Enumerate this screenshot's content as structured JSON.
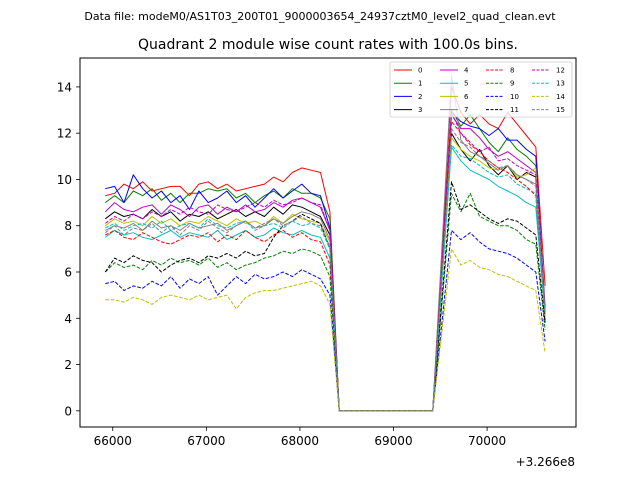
{
  "chart_data": {
    "type": "line",
    "suptitle": "Data file: modeM0/AS1T03_200T01_9000003654_24937cztM0_level2_quad_clean.evt",
    "title": "Quadrant 2 module wise count rates with 100.0s bins.",
    "xlabel": "",
    "ylabel": "",
    "x_offset_label": "+3.266e8",
    "xlim": [
      65650,
      70950
    ],
    "ylim": [
      -0.7,
      15.25
    ],
    "x_ticks": [
      66000,
      67000,
      68000,
      69000,
      70000
    ],
    "x_tick_labels": [
      "66000",
      "67000",
      "68000",
      "69000",
      "70000"
    ],
    "y_ticks": [
      0,
      2,
      4,
      6,
      8,
      10,
      12,
      14
    ],
    "y_tick_labels": [
      "0",
      "2",
      "4",
      "6",
      "8",
      "10",
      "12",
      "14"
    ],
    "grid": false,
    "legend_placement": "top-right",
    "x_segments": {
      "seg1": {
        "start": 65920,
        "step": 100,
        "count": 25
      },
      "gap": {
        "start": 68420,
        "end": 69420
      },
      "seg2": {
        "start": 69620,
        "step": 100,
        "count": 11
      }
    },
    "series": [
      {
        "name": "0",
        "color": "#ff0000",
        "dash": "solid",
        "seg1": [
          9.3,
          9.4,
          9.8,
          9.6,
          9.9,
          9.5,
          9.6,
          9.7,
          9.7,
          9.3,
          9.8,
          9.9,
          9.6,
          9.8,
          9.5,
          9.6,
          9.7,
          9.8,
          10.1,
          9.9,
          10.3,
          10.5,
          10.4,
          10.3,
          8.6
        ],
        "seg2": [
          14.0,
          12.9,
          12.4,
          12.8,
          12.4,
          12.2,
          12.9,
          12.4,
          11.9,
          11.4,
          5.4
        ]
      },
      {
        "name": "1",
        "color": "#008000",
        "dash": "solid",
        "seg1": [
          9.0,
          9.3,
          9.0,
          9.5,
          9.3,
          9.6,
          9.1,
          9.4,
          9.0,
          9.4,
          9.4,
          9.6,
          9.5,
          9.6,
          9.2,
          9.4,
          9.0,
          9.3,
          9.5,
          9.2,
          9.6,
          9.4,
          9.4,
          9.2,
          8.3
        ],
        "seg2": [
          13.0,
          12.3,
          12.8,
          12.2,
          11.6,
          11.2,
          11.8,
          11.3,
          11.0,
          10.6,
          4.5
        ]
      },
      {
        "name": "2",
        "color": "#0000ff",
        "dash": "solid",
        "seg1": [
          9.6,
          9.7,
          9.0,
          10.2,
          9.6,
          9.2,
          9.5,
          9.0,
          9.3,
          8.7,
          9.5,
          9.0,
          9.2,
          9.5,
          9.0,
          9.3,
          8.8,
          9.2,
          9.6,
          9.2,
          9.5,
          9.8,
          9.4,
          9.3,
          7.9
        ],
        "seg2": [
          12.9,
          12.5,
          12.3,
          12.2,
          11.9,
          12.2,
          11.7,
          11.7,
          11.3,
          11.0,
          4.3
        ]
      },
      {
        "name": "3",
        "color": "#000000",
        "dash": "solid",
        "seg1": [
          8.3,
          8.6,
          8.4,
          8.5,
          8.3,
          8.7,
          8.4,
          8.6,
          8.2,
          8.5,
          8.4,
          8.6,
          8.3,
          8.5,
          8.7,
          8.4,
          8.6,
          8.4,
          8.8,
          8.5,
          8.9,
          8.8,
          8.6,
          8.4,
          7.6
        ],
        "seg2": [
          12.0,
          11.3,
          10.8,
          11.3,
          10.6,
          10.2,
          10.6,
          10.0,
          10.3,
          10.1,
          3.9
        ]
      },
      {
        "name": "4",
        "color": "#bf00bf",
        "dash": "solid",
        "seg1": [
          8.6,
          9.0,
          8.7,
          8.6,
          8.8,
          8.9,
          8.5,
          8.9,
          8.7,
          8.4,
          8.8,
          8.9,
          8.5,
          8.8,
          8.6,
          8.9,
          8.6,
          8.7,
          9.0,
          8.8,
          9.1,
          9.2,
          9.0,
          8.8,
          7.8
        ],
        "seg2": [
          12.8,
          12.2,
          12.2,
          11.8,
          11.3,
          11.0,
          11.2,
          10.9,
          10.6,
          10.3,
          4.4
        ]
      },
      {
        "name": "5",
        "color": "#00bfbf",
        "dash": "solid",
        "seg1": [
          7.5,
          7.8,
          7.6,
          7.7,
          7.5,
          7.4,
          7.6,
          7.8,
          7.5,
          7.7,
          7.6,
          7.5,
          7.8,
          7.4,
          7.6,
          7.8,
          7.5,
          7.6,
          7.9,
          7.7,
          7.6,
          7.8,
          7.6,
          7.5,
          6.6
        ],
        "seg2": [
          11.4,
          10.8,
          10.4,
          10.2,
          10.0,
          9.7,
          9.5,
          9.3,
          9.0,
          8.8,
          4.1
        ]
      },
      {
        "name": "6",
        "color": "#bfbf00",
        "dash": "solid",
        "seg1": [
          8.0,
          8.3,
          8.1,
          8.2,
          8.0,
          8.4,
          8.1,
          8.3,
          8.0,
          8.2,
          8.1,
          8.4,
          8.2,
          8.0,
          8.3,
          8.1,
          8.2,
          8.0,
          8.4,
          8.1,
          8.5,
          8.3,
          8.2,
          8.1,
          7.3
        ],
        "seg2": [
          11.8,
          11.3,
          11.0,
          10.8,
          10.5,
          10.4,
          10.6,
          10.1,
          10.2,
          10.5,
          4.0
        ]
      },
      {
        "name": "7",
        "color": "#808080",
        "dash": "solid",
        "seg1": [
          7.8,
          8.0,
          7.9,
          8.1,
          7.8,
          8.2,
          7.9,
          8.0,
          7.8,
          8.1,
          7.9,
          8.0,
          8.1,
          7.8,
          8.0,
          8.2,
          7.9,
          8.0,
          8.3,
          8.1,
          8.4,
          8.6,
          8.5,
          8.3,
          7.4
        ],
        "seg2": [
          14.5,
          11.7,
          11.2,
          11.0,
          10.7,
          10.4,
          10.6,
          10.2,
          10.0,
          9.8,
          4.2
        ]
      },
      {
        "name": "8",
        "color": "#ff0000",
        "dash": "dashed",
        "seg1": [
          7.6,
          7.8,
          7.5,
          7.4,
          7.7,
          7.5,
          7.3,
          7.2,
          7.4,
          7.6,
          7.5,
          7.7,
          7.3,
          7.6,
          7.4,
          7.8,
          7.5,
          7.3,
          7.6,
          7.8,
          7.5,
          7.7,
          7.4,
          7.3,
          6.3
        ],
        "seg2": [
          12.5,
          12.0,
          11.5,
          11.2,
          10.8,
          10.5,
          10.3,
          10.0,
          9.7,
          9.3,
          4.3
        ]
      },
      {
        "name": "9",
        "color": "#008000",
        "dash": "dashed",
        "seg1": [
          6.0,
          6.4,
          6.2,
          6.3,
          6.1,
          6.5,
          6.3,
          6.6,
          6.4,
          6.5,
          6.3,
          6.6,
          6.2,
          6.4,
          6.1,
          6.3,
          6.4,
          6.6,
          6.7,
          6.9,
          6.8,
          7.0,
          6.9,
          6.7,
          5.8
        ],
        "seg2": [
          9.4,
          8.6,
          9.4,
          8.4,
          8.2,
          8.0,
          8.0,
          7.8,
          7.4,
          7.2,
          3.5
        ]
      },
      {
        "name": "10",
        "color": "#0000ff",
        "dash": "dashed",
        "seg1": [
          5.5,
          5.6,
          5.2,
          5.4,
          5.3,
          5.6,
          5.4,
          5.8,
          5.3,
          5.7,
          5.5,
          5.8,
          5.0,
          5.4,
          5.8,
          5.5,
          5.9,
          5.7,
          5.8,
          6.0,
          5.8,
          6.1,
          5.9,
          5.7,
          5.0
        ],
        "seg2": [
          7.8,
          7.4,
          7.7,
          7.3,
          7.0,
          6.9,
          6.8,
          6.6,
          6.3,
          6.0,
          3.0
        ]
      },
      {
        "name": "11",
        "color": "#000000",
        "dash": "dashed",
        "seg1": [
          6.0,
          6.6,
          6.4,
          6.7,
          6.5,
          6.4,
          6.0,
          6.3,
          6.5,
          6.6,
          6.4,
          6.7,
          6.6,
          6.8,
          6.6,
          6.9,
          6.7,
          6.8,
          7.5,
          8.0,
          8.2,
          8.5,
          8.3,
          8.1,
          7.0
        ],
        "seg2": [
          9.9,
          8.7,
          8.9,
          8.6,
          8.3,
          8.1,
          8.3,
          8.2,
          7.9,
          7.6,
          3.8
        ]
      },
      {
        "name": "12",
        "color": "#bf00bf",
        "dash": "dashed",
        "seg1": [
          8.1,
          8.4,
          8.2,
          8.5,
          8.3,
          8.6,
          8.4,
          8.7,
          8.5,
          8.8,
          8.6,
          8.5,
          8.9,
          8.7,
          8.6,
          8.8,
          9.0,
          8.8,
          9.1,
          8.9,
          9.0,
          9.2,
          9.0,
          8.9,
          7.8
        ],
        "seg2": [
          12.9,
          12.0,
          11.6,
          11.2,
          11.4,
          10.8,
          10.9,
          10.6,
          10.4,
          10.2,
          4.3
        ]
      },
      {
        "name": "13",
        "color": "#00bfbf",
        "dash": "dashed",
        "seg1": [
          7.9,
          8.1,
          7.8,
          8.0,
          8.1,
          7.9,
          8.2,
          7.8,
          8.0,
          8.1,
          7.9,
          8.3,
          8.0,
          7.9,
          8.1,
          8.2,
          7.8,
          8.0,
          8.1,
          7.9,
          8.2,
          8.0,
          8.1,
          7.9,
          7.0
        ],
        "seg2": [
          11.5,
          11.0,
          10.9,
          10.6,
          10.3,
          10.1,
          10.2,
          9.8,
          9.6,
          9.4,
          4.2
        ]
      },
      {
        "name": "14",
        "color": "#bfbf00",
        "dash": "dashed",
        "seg1": [
          4.8,
          4.8,
          4.7,
          4.9,
          4.8,
          4.6,
          4.9,
          5.0,
          4.9,
          4.8,
          5.0,
          4.8,
          4.9,
          5.0,
          4.4,
          4.9,
          5.1,
          5.2,
          5.2,
          5.3,
          5.4,
          5.5,
          5.6,
          5.4,
          4.6
        ],
        "seg2": [
          7.0,
          6.3,
          6.5,
          6.2,
          6.1,
          5.9,
          5.8,
          5.6,
          5.4,
          5.2,
          2.5
        ]
      },
      {
        "name": "15",
        "color": "#808080",
        "dash": "dashed",
        "seg1": [
          7.7,
          8.0,
          7.6,
          7.9,
          7.8,
          8.1,
          7.7,
          8.0,
          7.6,
          8.0,
          7.8,
          8.2,
          7.9,
          7.7,
          8.0,
          8.2,
          7.9,
          8.1,
          8.3,
          8.0,
          8.2,
          8.4,
          8.1,
          8.0,
          7.1
        ],
        "seg2": [
          12.2,
          11.6,
          11.4,
          11.0,
          10.8,
          10.5,
          10.6,
          10.2,
          10.0,
          9.7,
          4.2
        ]
      }
    ]
  }
}
